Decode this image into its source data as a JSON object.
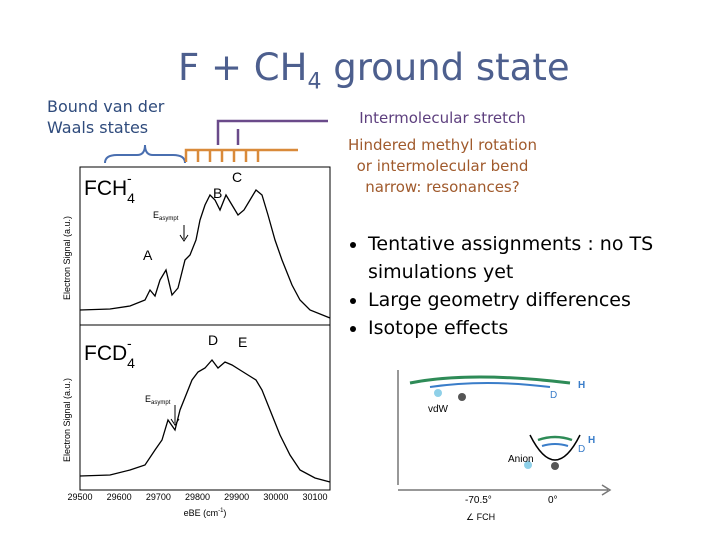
{
  "title": {
    "text": "F + CH",
    "sub": "4",
    "rest": " ground state"
  },
  "left_note": [
    "Bound van der",
    "Waals states"
  ],
  "annotations": {
    "stretch": "Intermolecular stretch",
    "rotation": [
      "Hindered methyl rotation",
      "or intermolecular bend",
      "narrow: resonances?"
    ]
  },
  "bullets": [
    "Tentative assignments : no TS simulations yet",
    "Large geometry differences",
    "Isotope effects"
  ],
  "spectrum": {
    "ylabel": "Electron Signal (a.u.)",
    "xlabel": "eBE (cm",
    "xlabel_sup": "-1",
    "xlabel_end": ")",
    "xticks": [
      "29500",
      "29600",
      "29700",
      "29800",
      "29900",
      "30000",
      "30100"
    ],
    "panels": [
      {
        "species": "FCH",
        "sub": "4",
        "sup": "-",
        "asympt": "E",
        "asympt_sub": "asympt",
        "peaks": [
          "A",
          "B",
          "C"
        ]
      },
      {
        "species": "FCD",
        "sub": "4",
        "sup": "-",
        "asympt": "E",
        "asympt_sub": "asympt",
        "peaks": [
          "D",
          "E"
        ]
      }
    ]
  },
  "potential": {
    "h1": "H",
    "d1": "D",
    "vdw": "vdW",
    "h2": "H",
    "d2": "D",
    "anion": "Anion",
    "angle1": "-70.5°",
    "angle2": "0°",
    "axis": "∠ FCH"
  }
}
